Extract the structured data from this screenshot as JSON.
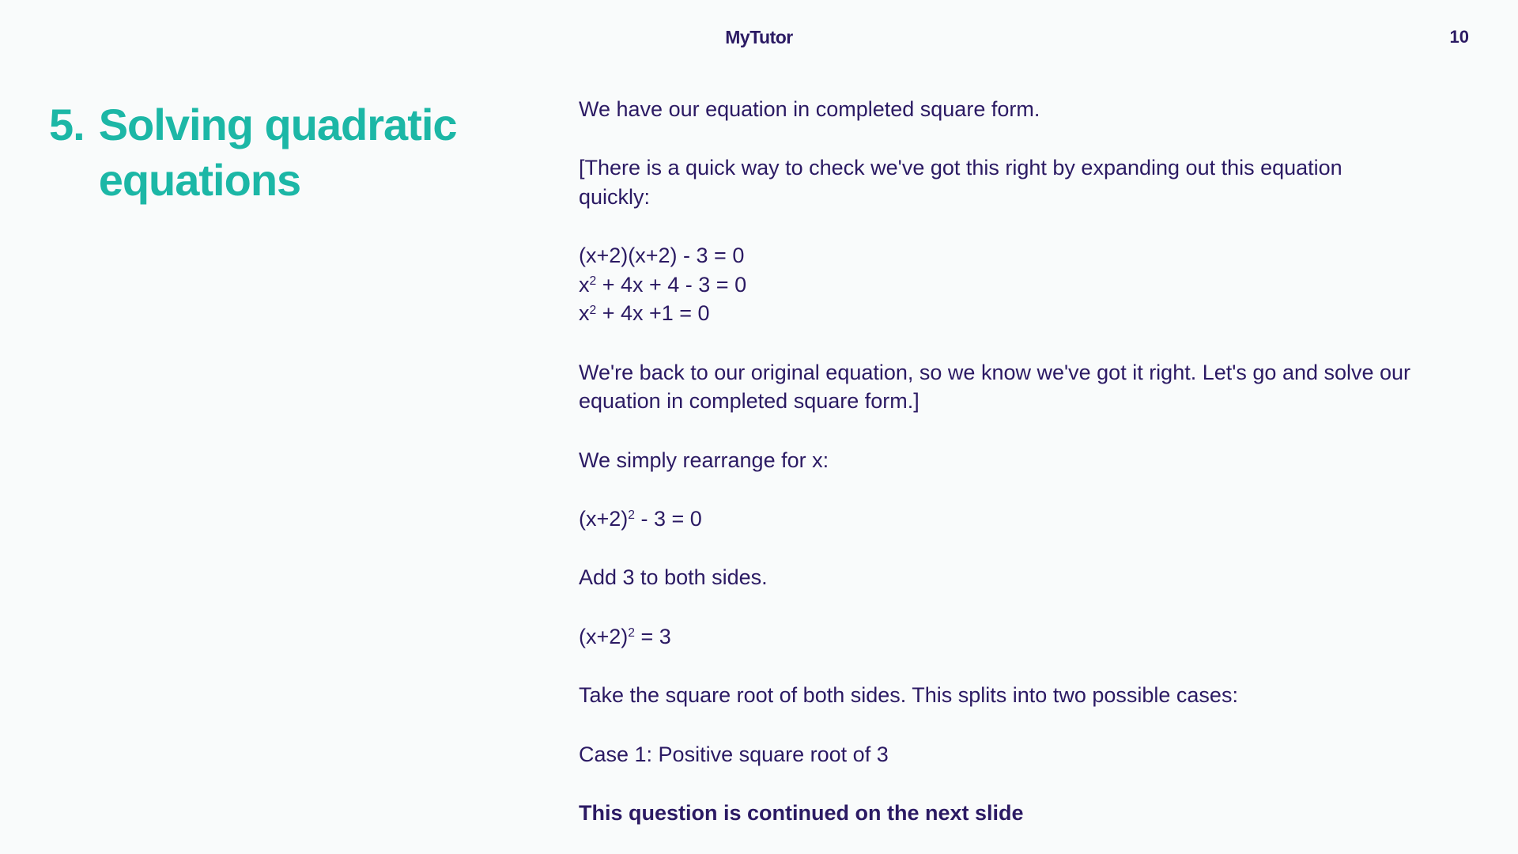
{
  "brand": "MyTutor",
  "page_number": "10",
  "heading": {
    "number": "5.",
    "title_line1": "Solving quadratic",
    "title_line2": "equations"
  },
  "content": {
    "p1": "We have our equation in completed square form.",
    "p2": "[There is a quick way to check we've got this right by expanding out this equation quickly:",
    "eq1_l1": "(x+2)(x+2) - 3 = 0",
    "eq1_l2_a": "x",
    "eq1_l2_sup": "2",
    "eq1_l2_b": " + 4x + 4 - 3 = 0",
    "eq1_l3_a": "x",
    "eq1_l3_sup": "2",
    "eq1_l3_b": " + 4x +1 = 0",
    "p3": "We're back to our original equation, so we know we've got it right. Let's go and solve our equation in completed square form.]",
    "p4": "We simply rearrange for x:",
    "eq2_a": "(x+2)",
    "eq2_sup": "2",
    "eq2_b": " - 3 = 0",
    "p5": "Add 3 to both sides.",
    "eq3_a": "(x+2)",
    "eq3_sup": "2",
    "eq3_b": " = 3",
    "p6": "Take the square root of both sides. This splits into two possible cases:",
    "p7": "Case 1: Positive square root of 3",
    "footer": "This question is continued on the next slide"
  },
  "colors": {
    "background": "#f9fbfb",
    "heading": "#1cb7a6",
    "body_text": "#2b1a63"
  },
  "typography": {
    "heading_fontsize": 56,
    "body_fontsize": 27,
    "brand_fontsize": 23,
    "pagenum_fontsize": 22
  }
}
